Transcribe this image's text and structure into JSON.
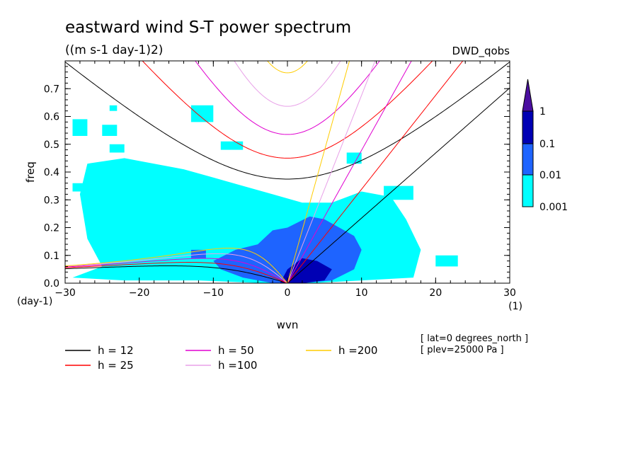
{
  "chart_data": {
    "type": "line",
    "title": "eastward wind S-T power spectrum",
    "units": "((m s-1 day-1)2)",
    "dataset": "DWD_qobs",
    "xlabel": "wvn",
    "xunit": "(1)",
    "ylabel": "freq",
    "yunit": "(day-1)",
    "xlim": [
      -30,
      30
    ],
    "ylim": [
      0,
      0.8
    ],
    "x_ticks": [
      "-30",
      "-20",
      "-10",
      "0",
      "10",
      "20",
      "30"
    ],
    "y_ticks": [
      "0.0",
      "0.1",
      "0.2",
      "0.3",
      "0.4",
      "0.5",
      "0.6",
      "0.7"
    ],
    "colorbar": {
      "levels": [
        "1",
        "0.1",
        "0.01",
        "0.001"
      ],
      "colors": [
        "#4b0fa0",
        "#0000b4",
        "#1e64ff",
        "#00ffff"
      ]
    },
    "legend": [
      {
        "name": "h = 12",
        "color": "#000000",
        "h": 12
      },
      {
        "name": "h = 25",
        "color": "#ff0000",
        "h": 25
      },
      {
        "name": "h = 50",
        "color": "#e000d0",
        "h": 50
      },
      {
        "name": "h =100",
        "color": "#e8a0e8",
        "h": 100
      },
      {
        "name": "h =200",
        "color": "#ffcc00",
        "h": 200
      }
    ],
    "annotations": [
      "[ lat=0 degrees_north ]",
      "[ plev=25000 Pa ]"
    ],
    "contour_regions": [
      {
        "level": "0.001",
        "color": "#00ffff",
        "polygons": [
          [
            [
              -29,
              0.02
            ],
            [
              -25,
              0.06
            ],
            [
              -27,
              0.16
            ],
            [
              -28,
              0.32
            ],
            [
              -27,
              0.43
            ],
            [
              -22,
              0.45
            ],
            [
              -18,
              0.43
            ],
            [
              -14,
              0.41
            ],
            [
              -10,
              0.38
            ],
            [
              -6,
              0.35
            ],
            [
              -2,
              0.32
            ],
            [
              2,
              0.29
            ],
            [
              6,
              0.29
            ],
            [
              10,
              0.33
            ],
            [
              14,
              0.31
            ],
            [
              16,
              0.23
            ],
            [
              18,
              0.12
            ],
            [
              17,
              0.02
            ],
            [
              10,
              0.01
            ],
            [
              3,
              0.0
            ],
            [
              -3,
              0.0
            ],
            [
              -12,
              0.01
            ],
            [
              -22,
              0.01
            ]
          ],
          [
            [
              -29,
              0.59
            ],
            [
              -27,
              0.59
            ],
            [
              -27,
              0.53
            ],
            [
              -29,
              0.53
            ]
          ],
          [
            [
              -24,
              0.5
            ],
            [
              -22,
              0.5
            ],
            [
              -22,
              0.47
            ],
            [
              -24,
              0.47
            ]
          ],
          [
            [
              -25,
              0.57
            ],
            [
              -23,
              0.57
            ],
            [
              -23,
              0.53
            ],
            [
              -25,
              0.53
            ]
          ],
          [
            [
              -13,
              0.64
            ],
            [
              -10,
              0.64
            ],
            [
              -10,
              0.58
            ],
            [
              -13,
              0.58
            ]
          ],
          [
            [
              -24,
              0.64
            ],
            [
              -23,
              0.64
            ],
            [
              -23,
              0.62
            ],
            [
              -24,
              0.62
            ]
          ],
          [
            [
              -9,
              0.51
            ],
            [
              -6,
              0.51
            ],
            [
              -6,
              0.48
            ],
            [
              -9,
              0.48
            ]
          ],
          [
            [
              8,
              0.47
            ],
            [
              10,
              0.47
            ],
            [
              10,
              0.43
            ],
            [
              8,
              0.43
            ]
          ],
          [
            [
              13,
              0.35
            ],
            [
              17,
              0.35
            ],
            [
              17,
              0.3
            ],
            [
              13,
              0.3
            ]
          ],
          [
            [
              -29,
              0.36
            ],
            [
              -27,
              0.36
            ],
            [
              -27,
              0.33
            ],
            [
              -29,
              0.33
            ]
          ],
          [
            [
              20,
              0.1
            ],
            [
              23,
              0.1
            ],
            [
              23,
              0.06
            ],
            [
              20,
              0.06
            ]
          ]
        ]
      },
      {
        "level": "0.01",
        "color": "#1e64ff",
        "polygons": [
          [
            [
              -10,
              0.08
            ],
            [
              -7,
              0.12
            ],
            [
              -4,
              0.14
            ],
            [
              -2,
              0.19
            ],
            [
              0,
              0.2
            ],
            [
              3,
              0.24
            ],
            [
              5,
              0.23
            ],
            [
              7,
              0.2
            ],
            [
              9,
              0.17
            ],
            [
              10,
              0.12
            ],
            [
              9,
              0.05
            ],
            [
              6,
              0.01
            ],
            [
              2,
              0.0
            ],
            [
              -2,
              0.0
            ],
            [
              -6,
              0.02
            ],
            [
              -9,
              0.05
            ]
          ],
          [
            [
              -13,
              0.12
            ],
            [
              -11,
              0.12
            ],
            [
              -11,
              0.09
            ],
            [
              -13,
              0.09
            ]
          ]
        ]
      },
      {
        "level": "0.1",
        "color": "#0000b4",
        "polygons": [
          [
            [
              -1,
              0.0
            ],
            [
              0,
              0.05
            ],
            [
              2,
              0.09
            ],
            [
              4,
              0.08
            ],
            [
              6,
              0.05
            ],
            [
              5,
              0.01
            ],
            [
              2,
              0.0
            ]
          ]
        ]
      }
    ]
  }
}
